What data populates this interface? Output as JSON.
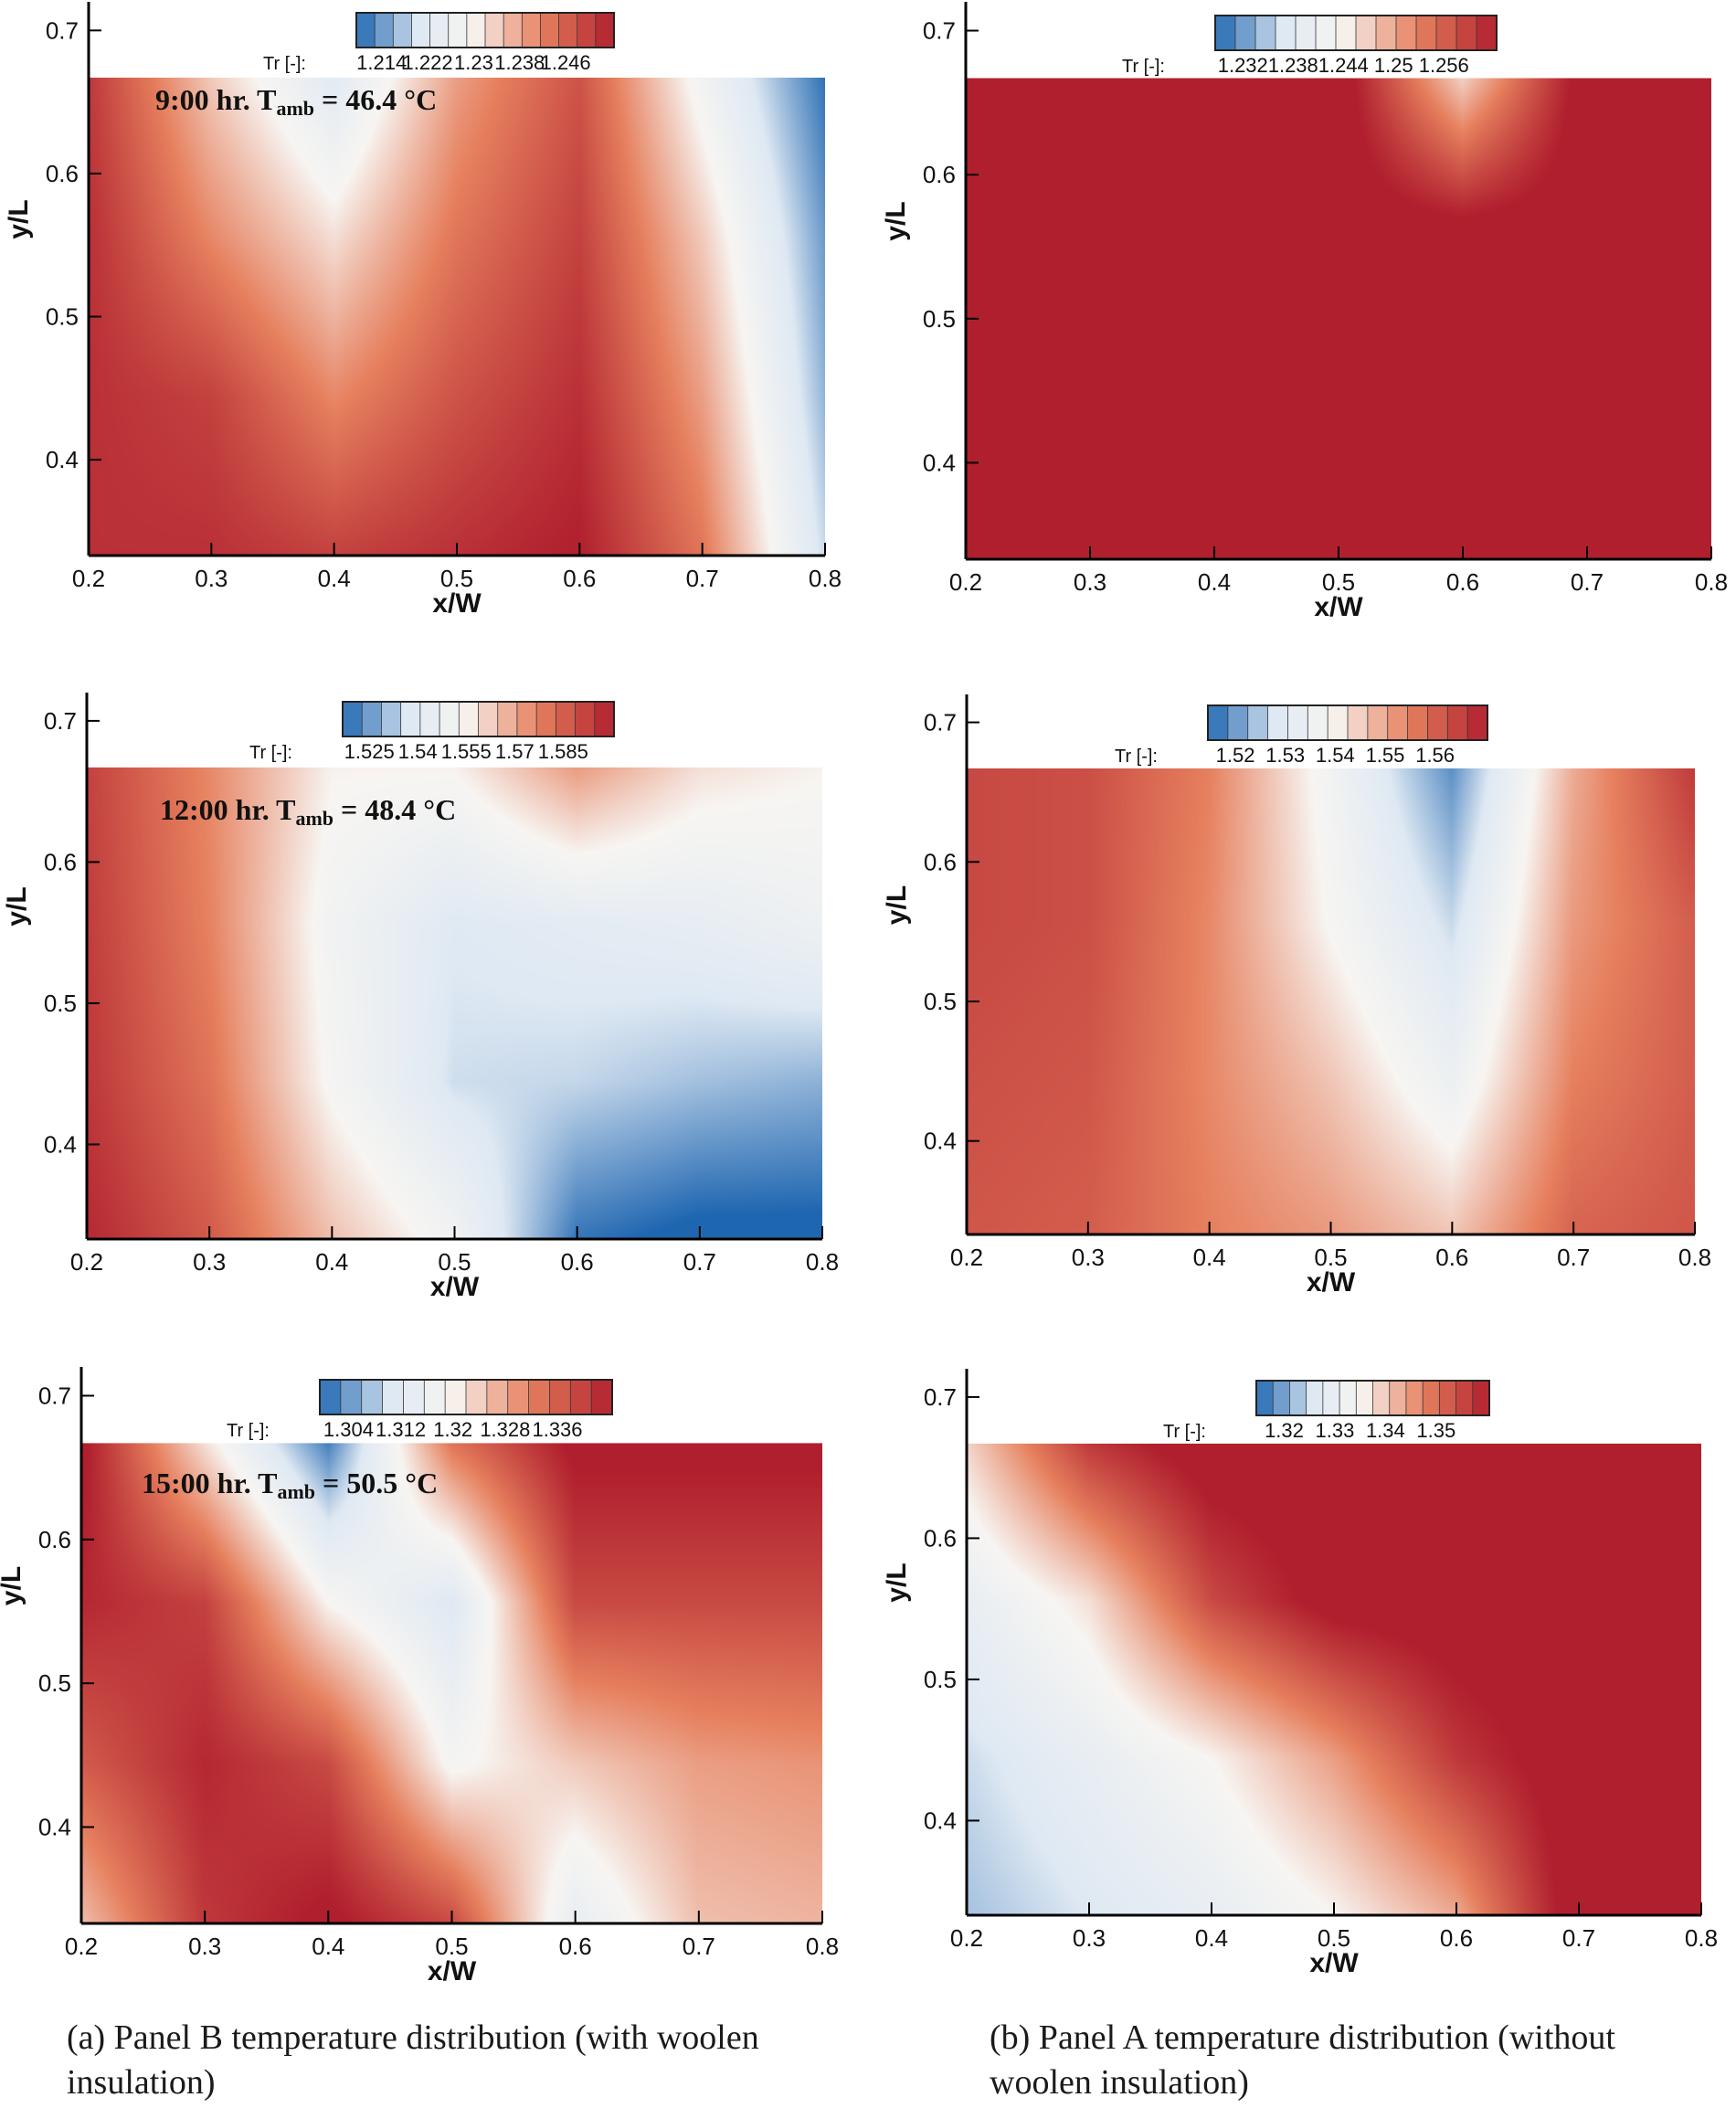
{
  "colors": {
    "deep_blue": "#1f66b0",
    "light_blue": "#dfe9f3",
    "white": "#f7f5f2",
    "salmon": "#e6805e",
    "dark_red": "#b01f2e",
    "axis": "#000000"
  },
  "captions": {
    "a": "(a) Panel B temperature distribution (with woolen insulation)",
    "b": "(b) Panel A temperature distribution (without woolen insulation)"
  },
  "chart_data": [
    {
      "id": "a1",
      "type": "heatmap",
      "annotation": {
        "prefix": "9:00 hr. T",
        "sub": "amb",
        "suffix": " = 46.4 °C"
      },
      "xlabel": "x/W",
      "ylabel": "y/L",
      "xlim": [
        0.2,
        0.8
      ],
      "ylim": [
        0.333,
        0.72
      ],
      "domain_top": 0.667,
      "xticks": [
        "0.2",
        "0.3",
        "0.4",
        "0.5",
        "0.6",
        "0.7",
        "0.8"
      ],
      "yticks": [
        "0.4",
        "0.5",
        "0.6",
        "0.7"
      ],
      "colorbar": {
        "label": "Tr [-]:",
        "min": 1.21,
        "max": 1.25,
        "levels": 14,
        "ticks": [
          "1.214",
          "1.222",
          "1.23",
          "1.238",
          "1.246"
        ]
      },
      "grid": {
        "xs": [
          0.2,
          0.3,
          0.4,
          0.5,
          0.6,
          0.7,
          0.8
        ],
        "ys": [
          0.333,
          0.444,
          0.556,
          0.667
        ],
        "v": [
          [
            1.248,
            1.248,
            1.246,
            1.248,
            1.25,
            1.24,
            1.219
          ],
          [
            1.248,
            1.246,
            1.238,
            1.244,
            1.248,
            1.236,
            1.216
          ],
          [
            1.248,
            1.238,
            1.23,
            1.24,
            1.246,
            1.232,
            1.214
          ],
          [
            1.247,
            1.232,
            1.221,
            1.236,
            1.244,
            1.226,
            1.211
          ]
        ]
      }
    },
    {
      "id": "b1",
      "type": "heatmap",
      "xlabel": "x/W",
      "ylabel": "y/L",
      "xlim": [
        0.2,
        0.8
      ],
      "ylim": [
        0.333,
        0.72
      ],
      "domain_top": 0.667,
      "xticks": [
        "0.2",
        "0.3",
        "0.4",
        "0.5",
        "0.6",
        "0.7",
        "0.8"
      ],
      "yticks": [
        "0.4",
        "0.5",
        "0.6",
        "0.7"
      ],
      "colorbar": {
        "label": "Tr [-]:",
        "min": 1.23,
        "max": 1.26,
        "levels": 14,
        "ticks": [
          "1.232",
          "1.238",
          "1.244",
          "1.25",
          "1.256"
        ]
      },
      "grid": {
        "xs": [
          0.2,
          0.3,
          0.4,
          0.5,
          0.6,
          0.7,
          0.8
        ],
        "ys": [
          0.333,
          0.444,
          0.556,
          0.667
        ],
        "v": [
          [
            1.262,
            1.262,
            1.262,
            1.262,
            1.262,
            1.262,
            1.262
          ],
          [
            1.262,
            1.262,
            1.262,
            1.262,
            1.262,
            1.262,
            1.262
          ],
          [
            1.262,
            1.262,
            1.262,
            1.262,
            1.262,
            1.262,
            1.262
          ],
          [
            1.262,
            1.262,
            1.262,
            1.262,
            1.246,
            1.262,
            1.262
          ]
        ]
      }
    },
    {
      "id": "a2",
      "type": "heatmap",
      "annotation": {
        "prefix": "12:00 hr. T",
        "sub": "amb",
        "suffix": " = 48.4 °C"
      },
      "xlabel": "x/W",
      "ylabel": "y/L",
      "xlim": [
        0.2,
        0.8
      ],
      "ylim": [
        0.333,
        0.72
      ],
      "domain_top": 0.667,
      "xticks": [
        "0.2",
        "0.3",
        "0.4",
        "0.5",
        "0.6",
        "0.7",
        "0.8"
      ],
      "yticks": [
        "0.4",
        "0.5",
        "0.6",
        "0.7"
      ],
      "colorbar": {
        "label": "Tr [-]:",
        "min": 1.52,
        "max": 1.59,
        "levels": 14,
        "ticks": [
          "1.525",
          "1.54",
          "1.555",
          "1.57",
          "1.585"
        ]
      },
      "grid": {
        "xs": [
          0.2,
          0.3,
          0.4,
          0.5,
          0.6,
          0.7,
          0.8
        ],
        "ys": [
          0.333,
          0.444,
          0.556,
          0.667
        ],
        "v": [
          [
            1.588,
            1.578,
            1.56,
            1.548,
            1.522,
            1.518,
            1.518
          ],
          [
            1.585,
            1.573,
            1.55,
            1.536,
            1.535,
            1.532,
            1.53
          ],
          [
            1.584,
            1.57,
            1.548,
            1.538,
            1.54,
            1.542,
            1.546
          ],
          [
            1.583,
            1.569,
            1.552,
            1.552,
            1.566,
            1.555,
            1.552
          ]
        ]
      }
    },
    {
      "id": "b2",
      "type": "heatmap",
      "xlabel": "x/W",
      "ylabel": "y/L",
      "xlim": [
        0.2,
        0.8
      ],
      "ylim": [
        0.333,
        0.72
      ],
      "domain_top": 0.667,
      "xticks": [
        "0.2",
        "0.3",
        "0.4",
        "0.5",
        "0.6",
        "0.7",
        "0.8"
      ],
      "yticks": [
        "0.4",
        "0.5",
        "0.6",
        "0.7"
      ],
      "colorbar": {
        "label": "Tr [-]:",
        "min": 1.51,
        "max": 1.56,
        "levels": 14,
        "ticks": [
          "1.52",
          "1.53",
          "1.54",
          "1.55",
          "1.56"
        ]
      },
      "grid": {
        "xs": [
          0.2,
          0.3,
          0.4,
          0.5,
          0.6,
          0.7,
          0.8
        ],
        "ys": [
          0.333,
          0.444,
          0.556,
          0.667
        ],
        "v": [
          [
            1.552,
            1.551,
            1.546,
            1.543,
            1.538,
            1.55,
            1.552
          ],
          [
            1.553,
            1.552,
            1.545,
            1.538,
            1.528,
            1.546,
            1.551
          ],
          [
            1.554,
            1.553,
            1.545,
            1.532,
            1.521,
            1.543,
            1.551
          ],
          [
            1.554,
            1.553,
            1.546,
            1.53,
            1.514,
            1.541,
            1.556
          ]
        ]
      }
    },
    {
      "id": "a3",
      "type": "heatmap",
      "annotation": {
        "prefix": "15:00 hr. T",
        "sub": "amb",
        "suffix": " = 50.5 °C"
      },
      "xlabel": "x/W",
      "ylabel": "y/L",
      "xlim": [
        0.2,
        0.8
      ],
      "ylim": [
        0.333,
        0.72
      ],
      "domain_top": 0.667,
      "xticks": [
        "0.2",
        "0.3",
        "0.4",
        "0.5",
        "0.6",
        "0.7",
        "0.8"
      ],
      "yticks": [
        "0.4",
        "0.5",
        "0.6",
        "0.7"
      ],
      "colorbar": {
        "label": "Tr [-]:",
        "min": 1.3,
        "max": 1.34,
        "levels": 14,
        "ticks": [
          "1.304",
          "1.312",
          "1.32",
          "1.328",
          "1.336"
        ]
      },
      "grid": {
        "xs": [
          0.2,
          0.3,
          0.4,
          0.5,
          0.6,
          0.7,
          0.8
        ],
        "ys": [
          0.333,
          0.444,
          0.556,
          0.667
        ],
        "v": [
          [
            1.323,
            1.337,
            1.341,
            1.335,
            1.313,
            1.323,
            1.324
          ],
          [
            1.333,
            1.339,
            1.335,
            1.317,
            1.322,
            1.326,
            1.327
          ],
          [
            1.339,
            1.336,
            1.318,
            1.31,
            1.335,
            1.335,
            1.335
          ],
          [
            1.341,
            1.32,
            1.302,
            1.33,
            1.341,
            1.341,
            1.341
          ]
        ]
      }
    },
    {
      "id": "b3",
      "type": "heatmap",
      "xlabel": "x/W",
      "ylabel": "y/L",
      "xlim": [
        0.2,
        0.8
      ],
      "ylim": [
        0.333,
        0.72
      ],
      "domain_top": 0.667,
      "xticks": [
        "0.2",
        "0.3",
        "0.4",
        "0.5",
        "0.6",
        "0.7",
        "0.8"
      ],
      "yticks": [
        "0.4",
        "0.5",
        "0.6",
        "0.7"
      ],
      "colorbar": {
        "label": "Tr [-]:",
        "min": 1.315,
        "max": 1.355,
        "levels": 14,
        "ticks": [
          "1.32",
          "1.33",
          "1.34",
          "1.35"
        ]
      },
      "grid": {
        "xs": [
          0.2,
          0.3,
          0.4,
          0.5,
          0.6,
          0.7,
          0.8
        ],
        "ys": [
          0.333,
          0.444,
          0.556,
          0.667
        ],
        "v": [
          [
            1.322,
            1.325,
            1.328,
            1.333,
            1.34,
            1.358,
            1.358
          ],
          [
            1.324,
            1.328,
            1.333,
            1.341,
            1.352,
            1.358,
            1.358
          ],
          [
            1.328,
            1.335,
            1.35,
            1.357,
            1.358,
            1.358,
            1.358
          ],
          [
            1.336,
            1.352,
            1.358,
            1.358,
            1.358,
            1.358,
            1.358
          ]
        ]
      }
    }
  ]
}
